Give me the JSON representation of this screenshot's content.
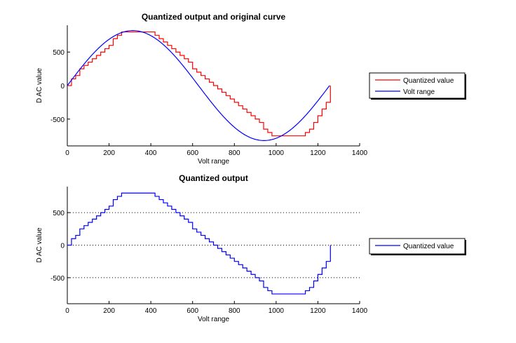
{
  "chart_data": [
    {
      "type": "line",
      "title": "Quantized output and original curve",
      "xlabel": "Volt range",
      "ylabel": "D AC value",
      "xlim": [
        0,
        1400
      ],
      "ylim": [
        -900,
        900
      ],
      "xticks": [
        "0",
        "200",
        "400",
        "600",
        "800",
        "1000",
        "1200",
        "1400"
      ],
      "yticks": [
        "-500",
        "0",
        "500"
      ],
      "grid": false,
      "legend": {
        "placement": "right",
        "entries": [
          "Quantized value",
          "Volt range"
        ]
      },
      "series": [
        {
          "name": "Quantized value",
          "color": "#ff0000",
          "style": "stairs",
          "x": [
            0,
            20,
            40,
            60,
            80,
            100,
            120,
            140,
            160,
            180,
            200,
            220,
            240,
            260,
            280,
            300,
            320,
            340,
            360,
            380,
            400,
            420,
            440,
            460,
            480,
            500,
            520,
            540,
            560,
            580,
            600,
            620,
            640,
            660,
            680,
            700,
            720,
            740,
            760,
            780,
            800,
            820,
            840,
            860,
            880,
            900,
            920,
            940,
            960,
            980,
            1000,
            1020,
            1040,
            1060,
            1080,
            1100,
            1120,
            1140,
            1160,
            1180,
            1200,
            1220,
            1240,
            1260
          ],
          "values": [
            0,
            100,
            150,
            250,
            300,
            350,
            400,
            450,
            500,
            550,
            600,
            700,
            750,
            800,
            800,
            800,
            800,
            800,
            800,
            800,
            800,
            750,
            700,
            650,
            600,
            550,
            500,
            450,
            400,
            350,
            250,
            200,
            150,
            100,
            50,
            0,
            -50,
            -100,
            -150,
            -200,
            -250,
            -300,
            -350,
            -400,
            -450,
            -500,
            -550,
            -650,
            -700,
            -750,
            -750,
            -750,
            -750,
            -750,
            -750,
            -750,
            -750,
            -700,
            -650,
            -550,
            -450,
            -350,
            -250,
            0
          ]
        },
        {
          "name": "Volt range",
          "color": "#0000ff",
          "style": "line",
          "function": "820*sin(2*pi*x/1256)",
          "x_range": [
            0,
            1256
          ],
          "amplitude": 820,
          "period": 1256
        }
      ]
    },
    {
      "type": "line",
      "title": "Quantized output",
      "xlabel": "Volt range",
      "ylabel": "D AC value",
      "xlim": [
        0,
        1400
      ],
      "ylim": [
        -900,
        900
      ],
      "xticks": [
        "0",
        "200",
        "400",
        "600",
        "800",
        "1000",
        "1200",
        "1400"
      ],
      "yticks": [
        "-500",
        "0",
        "500"
      ],
      "grid": true,
      "grid_style": "dotted horizontal at y ticks",
      "legend": {
        "placement": "right",
        "entries": [
          "Quantized value"
        ]
      },
      "series": [
        {
          "name": "Quantized value",
          "color": "#0000ff",
          "style": "stairs",
          "x": [
            0,
            20,
            40,
            60,
            80,
            100,
            120,
            140,
            160,
            180,
            200,
            220,
            240,
            260,
            280,
            300,
            320,
            340,
            360,
            380,
            400,
            420,
            440,
            460,
            480,
            500,
            520,
            540,
            560,
            580,
            600,
            620,
            640,
            660,
            680,
            700,
            720,
            740,
            760,
            780,
            800,
            820,
            840,
            860,
            880,
            900,
            920,
            940,
            960,
            980,
            1000,
            1020,
            1040,
            1060,
            1080,
            1100,
            1120,
            1140,
            1160,
            1180,
            1200,
            1220,
            1240,
            1260
          ],
          "values": [
            0,
            100,
            150,
            250,
            300,
            350,
            400,
            450,
            500,
            550,
            600,
            700,
            750,
            800,
            800,
            800,
            800,
            800,
            800,
            800,
            800,
            750,
            700,
            650,
            600,
            550,
            500,
            450,
            400,
            350,
            250,
            200,
            150,
            100,
            50,
            0,
            -50,
            -100,
            -150,
            -200,
            -250,
            -300,
            -350,
            -400,
            -450,
            -500,
            -550,
            -650,
            -700,
            -750,
            -750,
            -750,
            -750,
            -750,
            -750,
            -750,
            -750,
            -700,
            -650,
            -550,
            -450,
            -350,
            -250,
            0
          ]
        }
      ]
    }
  ]
}
